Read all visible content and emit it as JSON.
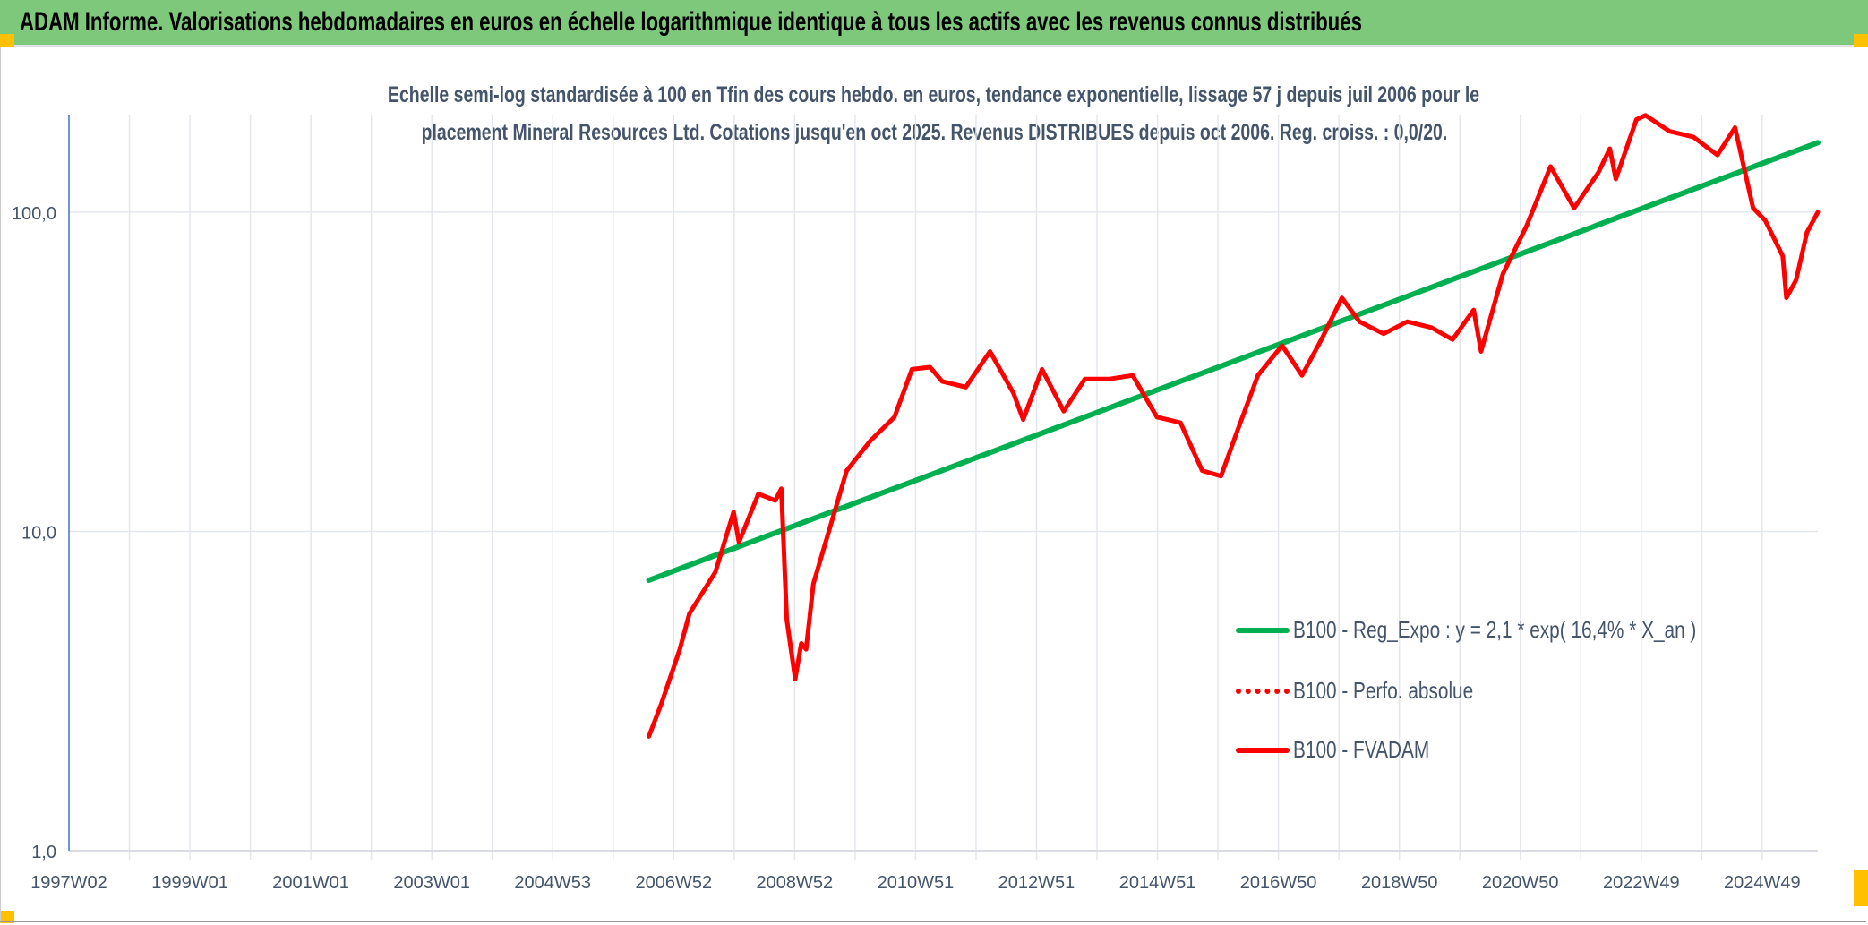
{
  "header": {
    "title": "ADAM Informe. Valorisations hebdomadaires en euros en échelle logarithmique identique à tous les actifs avec les revenus connus distribués"
  },
  "colors": {
    "header_bg": "#7ec87c",
    "trend": "#00b050",
    "series": "#ff0000",
    "accent": "#ffc000",
    "text": "#44546a"
  },
  "chart_data": {
    "type": "line",
    "title_lines": [
      "Echelle semi-log standardisée à 100 en Tfin des cours hebdo. en euros, tendance exponentielle, lissage 57 j depuis juil 2006 pour le",
      "placement Mineral Resources Ltd. Cotations jusqu'en oct 2025. Revenus DISTRIBUES depuis oct 2006. Reg. croiss. : 0,0/20."
    ],
    "y_scale": "log",
    "ylim": [
      1,
      202
    ],
    "xlim": [
      1997.0,
      2025.92
    ],
    "y_ticks": [
      {
        "value": 1,
        "label": "1,0"
      },
      {
        "value": 10,
        "label": "10,0"
      },
      {
        "value": 100,
        "label": "100,0"
      }
    ],
    "x_ticks": [
      {
        "value": 1997.0,
        "label": "1997W02"
      },
      {
        "value": 1999.0,
        "label": "1999W01"
      },
      {
        "value": 2001.0,
        "label": "2001W01"
      },
      {
        "value": 2003.0,
        "label": "2003W01"
      },
      {
        "value": 2005.0,
        "label": "2004W53"
      },
      {
        "value": 2007.0,
        "label": "2006W52"
      },
      {
        "value": 2009.0,
        "label": "2008W52"
      },
      {
        "value": 2011.0,
        "label": "2010W51"
      },
      {
        "value": 2013.0,
        "label": "2012W51"
      },
      {
        "value": 2015.0,
        "label": "2014W51"
      },
      {
        "value": 2017.0,
        "label": "2016W50"
      },
      {
        "value": 2019.0,
        "label": "2018W50"
      },
      {
        "value": 2021.0,
        "label": "2020W50"
      },
      {
        "value": 2023.0,
        "label": "2022W49"
      },
      {
        "value": 2025.0,
        "label": "2024W49"
      }
    ],
    "grid": true,
    "legend_placement": "bottom-right",
    "series": [
      {
        "name": "B100 - Reg_Expo : y = 2,1 * exp( 16,4% *  X_an )",
        "style": "solid",
        "color": "#00b050",
        "x": [
          2006.59,
          2025.92
        ],
        "y": [
          7.03,
          165
        ]
      },
      {
        "name": "B100 - Perfo. absolue",
        "style": "dotted",
        "color": "#ff0000",
        "x": [],
        "y": []
      },
      {
        "name": "B100 - FVADAM",
        "style": "solid",
        "color": "#ff0000",
        "x": [
          2006.59,
          2006.8,
          2007.1,
          2007.26,
          2007.69,
          2007.99,
          2008.08,
          2008.4,
          2008.68,
          2008.78,
          2008.87,
          2009.01,
          2009.11,
          2009.19,
          2009.31,
          2009.66,
          2009.86,
          2010.25,
          2010.65,
          2010.94,
          2011.24,
          2011.44,
          2011.83,
          2012.23,
          2012.62,
          2012.78,
          2013.09,
          2013.45,
          2013.8,
          2014.2,
          2014.59,
          2014.99,
          2015.38,
          2015.74,
          2016.05,
          2016.33,
          2016.66,
          2017.06,
          2017.39,
          2017.71,
          2018.05,
          2018.34,
          2018.74,
          2019.13,
          2019.53,
          2019.88,
          2020.23,
          2020.35,
          2020.71,
          2021.1,
          2021.5,
          2021.89,
          2022.29,
          2022.48,
          2022.58,
          2022.92,
          2023.07,
          2023.47,
          2023.86,
          2024.26,
          2024.55,
          2024.85,
          2025.05,
          2025.34,
          2025.4,
          2025.56,
          2025.74,
          2025.92
        ],
        "y": [
          2.28,
          2.9,
          4.27,
          5.53,
          7.46,
          11.5,
          9.25,
          13.1,
          12.5,
          13.6,
          5.29,
          3.45,
          4.46,
          4.27,
          6.85,
          11.5,
          15.5,
          19.2,
          22.8,
          32.2,
          32.7,
          29.5,
          28.3,
          36.6,
          27.1,
          22.4,
          32.2,
          23.8,
          30.0,
          30.0,
          30.8,
          22.8,
          21.9,
          15.5,
          14.9,
          20.9,
          30.8,
          38.2,
          30.8,
          39.9,
          53.9,
          45.4,
          41.6,
          45.4,
          43.5,
          39.9,
          49.4,
          36.6,
          64.0,
          90.2,
          139,
          103,
          133,
          158,
          127,
          195,
          201,
          179,
          172,
          151,
          184,
          103,
          94.2,
          72.8,
          53.9,
          61.3,
          86.4,
          100
        ]
      }
    ]
  }
}
